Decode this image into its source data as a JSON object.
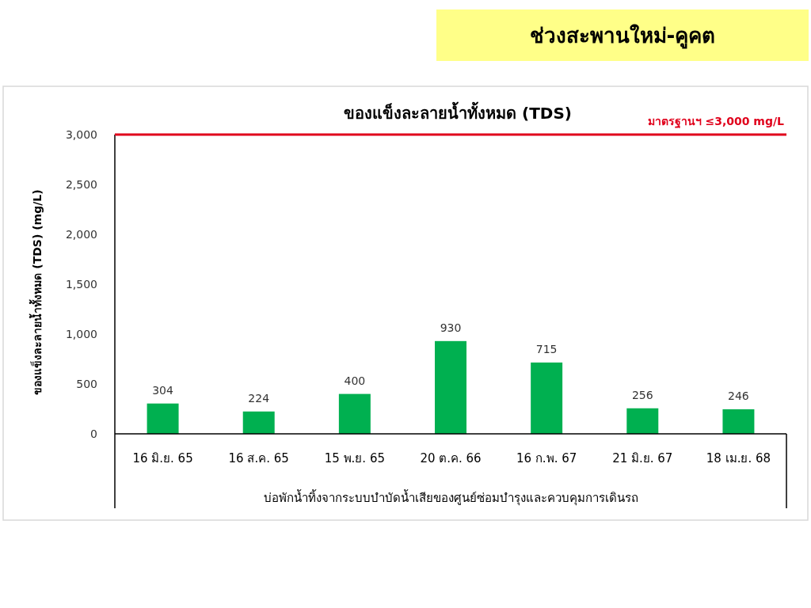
{
  "chart_data": {
    "type": "bar",
    "subtitle": "ช่วงสะพานใหม่-คูคต",
    "title": "ของแข็งละลายน้ำทั้งหมด (TDS)",
    "ylabel": "ของแข็งละลายน้ำทั้งหมด (TDS) (mg/L)",
    "xlabel": "บ่อพักน้ำทิ้งจากระบบบำบัดน้ำเสียของศูนย์ซ่อมบำรุงและควบคุมการเดินรถ",
    "categories": [
      "16 มิ.ย. 65",
      "16 ส.ค. 65",
      "15 พ.ย. 65",
      "20 ต.ค. 66",
      "16 ก.พ. 67",
      "21 มิ.ย. 67",
      "18 เม.ย. 68"
    ],
    "values": [
      304,
      224,
      400,
      930,
      715,
      256,
      246
    ],
    "color": "#00b050",
    "data_labels": true,
    "ylim": [
      0,
      3000
    ],
    "yticks": [
      {
        "value": 0,
        "label": "0"
      },
      {
        "value": 500,
        "label": "500"
      },
      {
        "value": 1000,
        "label": "1,000"
      },
      {
        "value": 1500,
        "label": "1,500"
      },
      {
        "value": 2000,
        "label": "2,000"
      },
      {
        "value": 2500,
        "label": "2,500"
      },
      {
        "value": 3000,
        "label": "3,000"
      }
    ],
    "ref_lines": [
      {
        "axis": "y",
        "value": 3000,
        "label": "มาตรฐานฯ ≤3,000 mg/L",
        "color": "#e0001b"
      }
    ]
  }
}
